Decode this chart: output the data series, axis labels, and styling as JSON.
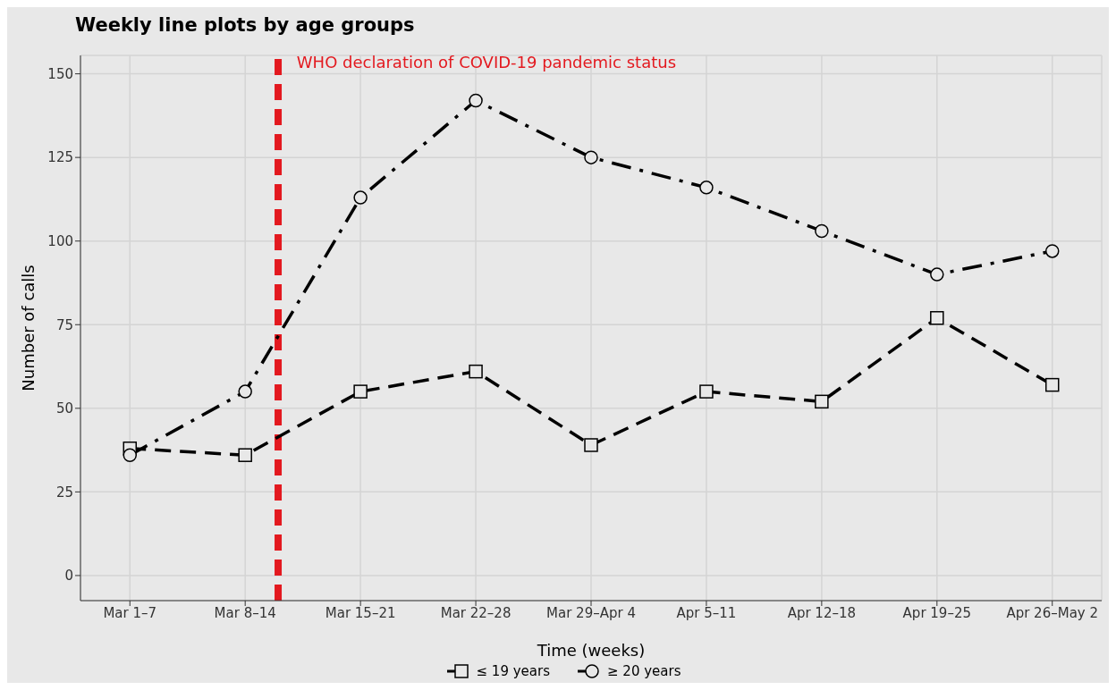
{
  "chart_data": {
    "type": "line",
    "title": "Weekly line plots by age groups",
    "xlabel": "Time (weeks)",
    "ylabel": "Number of calls",
    "x": [
      "--03-01",
      "--03-08",
      "--03-15",
      "--03-22",
      "--03-29",
      "--04-05",
      "--04-12",
      "--04-19",
      "--04-26"
    ],
    "xlim": [
      "--02-26",
      "--04-29"
    ],
    "xticks": [
      {
        "value": "--03-01",
        "label": "Mar 1–7"
      },
      {
        "value": "--03-08",
        "label": "Mar 8–14"
      },
      {
        "value": "--03-15",
        "label": "Mar 15–21"
      },
      {
        "value": "--03-22",
        "label": "Mar 22–28"
      },
      {
        "value": "--03-29",
        "label": "Mar 29–Apr 4"
      },
      {
        "value": "--04-05",
        "label": "Apr 5–11"
      },
      {
        "value": "--04-12",
        "label": "Apr 12–18"
      },
      {
        "value": "--04-19",
        "label": "Apr 19–25"
      },
      {
        "value": "--04-26",
        "label": "Apr 26–May 2"
      }
    ],
    "ylim": [
      -7.5,
      155.5
    ],
    "yticks": [
      0,
      25,
      50,
      75,
      100,
      125,
      150
    ],
    "grid": true,
    "legend": "bottom",
    "series": [
      {
        "name": "≤ 19 years",
        "color": "#000000",
        "marker": "square",
        "line_style": "dashed",
        "values": [
          38,
          36,
          55,
          61,
          39,
          55,
          52,
          77,
          57
        ]
      },
      {
        "name": "≥ 20 years",
        "color": "#000000",
        "marker": "circle",
        "line_style": "dashdot",
        "values": [
          36,
          55,
          113,
          142,
          125,
          116,
          103,
          90,
          97
        ]
      }
    ],
    "ref_lines": [
      {
        "axis": "x",
        "value": "--03-10",
        "label": "WHO declaration of COVID-19 pandemic status",
        "color": "#e3191f",
        "line_style": "dashed"
      }
    ]
  }
}
